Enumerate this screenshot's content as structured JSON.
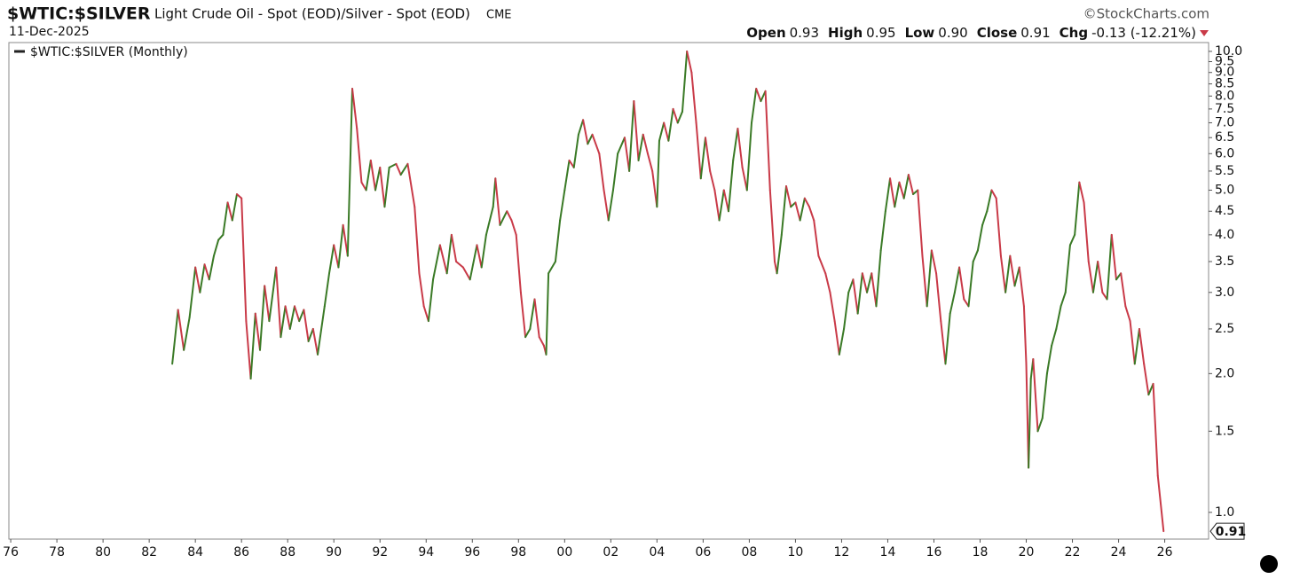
{
  "chart_data": {
    "type": "line",
    "title": "$WTIC:$SILVER",
    "subtitle": "Light Crude Oil - Spot (EOD)/Silver - Spot (EOD)",
    "exchange": "CME",
    "date": "11-Dec-2025",
    "source": "©StockCharts.com",
    "quote": [
      {
        "label": "Open",
        "value": "0.93"
      },
      {
        "label": "High",
        "value": "0.95"
      },
      {
        "label": "Low",
        "value": "0.90"
      },
      {
        "label": "Close",
        "value": "0.91"
      },
      {
        "label": "Chg",
        "value": "-0.13 (-12.21%)"
      }
    ],
    "log_scale": true,
    "grid": false,
    "up_color": "#3a7a26",
    "down_color": "#c93a48",
    "xlim": [
      1975.92,
      2027.9
    ],
    "ylim": [
      0.875,
      10.45
    ],
    "xticks": [
      {
        "value": 1976,
        "label": "76"
      },
      {
        "value": 1978,
        "label": "78"
      },
      {
        "value": 1980,
        "label": "80"
      },
      {
        "value": 1982,
        "label": "82"
      },
      {
        "value": 1984,
        "label": "84"
      },
      {
        "value": 1986,
        "label": "86"
      },
      {
        "value": 1988,
        "label": "88"
      },
      {
        "value": 1990,
        "label": "90"
      },
      {
        "value": 1992,
        "label": "92"
      },
      {
        "value": 1994,
        "label": "94"
      },
      {
        "value": 1996,
        "label": "96"
      },
      {
        "value": 1998,
        "label": "98"
      },
      {
        "value": 2000,
        "label": "00"
      },
      {
        "value": 2002,
        "label": "02"
      },
      {
        "value": 2004,
        "label": "04"
      },
      {
        "value": 2006,
        "label": "06"
      },
      {
        "value": 2008,
        "label": "08"
      },
      {
        "value": 2010,
        "label": "10"
      },
      {
        "value": 2012,
        "label": "12"
      },
      {
        "value": 2014,
        "label": "14"
      },
      {
        "value": 2016,
        "label": "16"
      },
      {
        "value": 2018,
        "label": "18"
      },
      {
        "value": 2020,
        "label": "20"
      },
      {
        "value": 2022,
        "label": "22"
      },
      {
        "value": 2024,
        "label": "24"
      },
      {
        "value": 2026,
        "label": "26"
      }
    ],
    "yticks": [
      {
        "value": 1,
        "label": "1.0"
      },
      1.5,
      {
        "value": 2,
        "label": "2.0"
      },
      2.5,
      {
        "value": 3,
        "label": "3.0"
      },
      3.5,
      {
        "value": 4,
        "label": "4.0"
      },
      4.5,
      {
        "value": 5,
        "label": "5.0"
      },
      5.5,
      {
        "value": 6,
        "label": "6.0"
      },
      6.5,
      {
        "value": 7,
        "label": "7.0"
      },
      7.5,
      {
        "value": 8,
        "label": "8.0"
      },
      8.5,
      {
        "value": 9,
        "label": "9.0"
      },
      9.5,
      {
        "value": 10,
        "label": "10.0"
      }
    ],
    "x": [
      1983.0,
      1983.25,
      1983.5,
      1983.75,
      1984.0,
      1984.2,
      1984.4,
      1984.6,
      1984.8,
      1985.0,
      1985.2,
      1985.4,
      1985.6,
      1985.8,
      1986.0,
      1986.2,
      1986.4,
      1986.6,
      1986.8,
      1987.0,
      1987.2,
      1987.5,
      1987.7,
      1987.9,
      1988.1,
      1988.3,
      1988.5,
      1988.7,
      1988.9,
      1989.1,
      1989.3,
      1989.6,
      1989.8,
      1990.0,
      1990.2,
      1990.4,
      1990.6,
      1990.8,
      1991.0,
      1991.2,
      1991.4,
      1991.6,
      1991.8,
      1992.0,
      1992.2,
      1992.4,
      1992.7,
      1992.9,
      1993.2,
      1993.5,
      1993.7,
      1993.9,
      1994.1,
      1994.3,
      1994.6,
      1994.9,
      1995.1,
      1995.3,
      1995.6,
      1995.9,
      1996.2,
      1996.4,
      1996.6,
      1996.9,
      1997.0,
      1997.2,
      1997.5,
      1997.7,
      1997.9,
      1998.1,
      1998.3,
      1998.5,
      1998.7,
      1998.9,
      1999.1,
      1999.2,
      1999.3,
      1999.6,
      1999.8,
      2000.0,
      2000.2,
      2000.4,
      2000.6,
      2000.8,
      2001.0,
      2001.2,
      2001.5,
      2001.7,
      2001.9,
      2002.1,
      2002.3,
      2002.6,
      2002.8,
      2003.0,
      2003.2,
      2003.4,
      2003.6,
      2003.8,
      2004.0,
      2004.1,
      2004.3,
      2004.5,
      2004.7,
      2004.9,
      2005.1,
      2005.3,
      2005.5,
      2005.7,
      2005.9,
      2006.1,
      2006.3,
      2006.5,
      2006.7,
      2006.9,
      2007.1,
      2007.3,
      2007.5,
      2007.7,
      2007.9,
      2008.1,
      2008.3,
      2008.5,
      2008.7,
      2008.9,
      2009.1,
      2009.2,
      2009.4,
      2009.6,
      2009.8,
      2010.0,
      2010.2,
      2010.4,
      2010.6,
      2010.8,
      2011.0,
      2011.3,
      2011.5,
      2011.7,
      2011.9,
      2012.1,
      2012.3,
      2012.5,
      2012.7,
      2012.9,
      2013.1,
      2013.3,
      2013.5,
      2013.7,
      2013.9,
      2014.1,
      2014.3,
      2014.5,
      2014.7,
      2014.9,
      2015.1,
      2015.3,
      2015.5,
      2015.7,
      2015.9,
      2016.1,
      2016.3,
      2016.5,
      2016.7,
      2016.9,
      2017.1,
      2017.3,
      2017.5,
      2017.7,
      2017.9,
      2018.1,
      2018.3,
      2018.5,
      2018.7,
      2018.9,
      2019.1,
      2019.3,
      2019.5,
      2019.7,
      2019.9,
      2020.0,
      2020.1,
      2020.2,
      2020.3,
      2020.5,
      2020.7,
      2020.9,
      2021.1,
      2021.3,
      2021.5,
      2021.7,
      2021.9,
      2022.1,
      2022.3,
      2022.5,
      2022.7,
      2022.9,
      2023.1,
      2023.3,
      2023.5,
      2023.7,
      2023.9,
      2024.1,
      2024.3,
      2024.5,
      2024.7,
      2024.9,
      2025.1,
      2025.3,
      2025.5,
      2025.7,
      2025.95
    ],
    "series": [
      {
        "name": "$WTIC:$SILVER (Monthly)",
        "color": "#222222",
        "values": [
          2.1,
          2.75,
          2.25,
          2.65,
          3.4,
          3.0,
          3.45,
          3.2,
          3.6,
          3.9,
          4.0,
          4.7,
          4.3,
          4.9,
          4.8,
          2.6,
          1.95,
          2.7,
          2.25,
          3.1,
          2.6,
          3.4,
          2.4,
          2.8,
          2.5,
          2.8,
          2.6,
          2.75,
          2.35,
          2.5,
          2.2,
          2.8,
          3.3,
          3.8,
          3.4,
          4.2,
          3.6,
          8.3,
          6.8,
          5.2,
          5.0,
          5.8,
          5.0,
          5.6,
          4.6,
          5.6,
          5.7,
          5.4,
          5.7,
          4.6,
          3.3,
          2.8,
          2.6,
          3.2,
          3.8,
          3.3,
          4.0,
          3.5,
          3.4,
          3.2,
          3.8,
          3.4,
          4.0,
          4.6,
          5.3,
          4.2,
          4.5,
          4.3,
          4.0,
          3.0,
          2.4,
          2.5,
          2.9,
          2.4,
          2.3,
          2.2,
          3.3,
          3.5,
          4.3,
          5.0,
          5.8,
          5.6,
          6.6,
          7.1,
          6.3,
          6.6,
          6.0,
          5.0,
          4.3,
          5.0,
          6.0,
          6.5,
          5.5,
          7.8,
          5.8,
          6.6,
          6.0,
          5.5,
          4.6,
          6.4,
          7.0,
          6.4,
          7.5,
          7.0,
          7.4,
          10.0,
          9.0,
          7.0,
          5.3,
          6.5,
          5.5,
          5.0,
          4.3,
          5.0,
          4.5,
          5.8,
          6.8,
          5.6,
          5.0,
          7.0,
          8.3,
          7.8,
          8.2,
          5.0,
          3.5,
          3.3,
          4.0,
          5.1,
          4.6,
          4.7,
          4.3,
          4.8,
          4.6,
          4.3,
          3.6,
          3.3,
          3.0,
          2.6,
          2.2,
          2.5,
          3.0,
          3.2,
          2.7,
          3.3,
          3.0,
          3.3,
          2.8,
          3.7,
          4.5,
          5.3,
          4.6,
          5.2,
          4.8,
          5.4,
          4.9,
          5.0,
          3.6,
          2.8,
          3.7,
          3.3,
          2.6,
          2.1,
          2.7,
          3.0,
          3.4,
          2.9,
          2.8,
          3.5,
          3.7,
          4.2,
          4.5,
          5.0,
          4.8,
          3.6,
          3.0,
          3.6,
          3.1,
          3.4,
          2.8,
          2.1,
          1.25,
          1.95,
          2.15,
          1.5,
          1.6,
          2.0,
          2.3,
          2.5,
          2.8,
          3.0,
          3.8,
          4.0,
          5.2,
          4.7,
          3.5,
          3.0,
          3.5,
          3.0,
          2.9,
          4.0,
          3.2,
          3.3,
          2.8,
          2.6,
          2.1,
          2.5,
          2.1,
          1.8,
          1.9,
          1.2,
          0.91
        ]
      }
    ]
  }
}
